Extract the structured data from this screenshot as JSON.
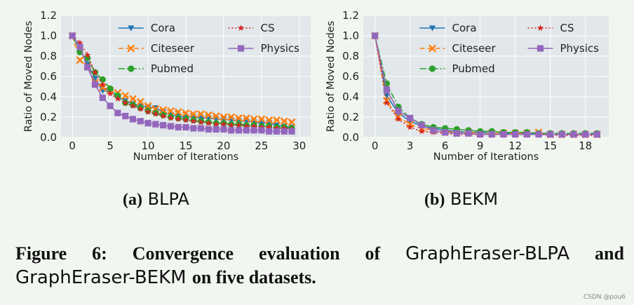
{
  "chart_data": [
    {
      "type": "line",
      "xlabel": "Number of Iterations",
      "ylabel": "Ratio of Moved Nodes",
      "xlim": [
        -1.5,
        31.5
      ],
      "ylim": [
        0.0,
        1.2
      ],
      "xticks": [
        0,
        5,
        10,
        15,
        20,
        25,
        30
      ],
      "yticks": [
        "0.0",
        "0.2",
        "0.4",
        "0.6",
        "0.8",
        "1.0",
        "1.2"
      ],
      "grid": true,
      "legend": "top-right",
      "x": [
        0,
        1,
        2,
        3,
        4,
        5,
        6,
        7,
        8,
        9,
        10,
        11,
        12,
        13,
        14,
        15,
        16,
        17,
        18,
        19,
        20,
        21,
        22,
        23,
        24,
        25,
        26,
        27,
        28,
        29
      ],
      "series": [
        {
          "name": "Cora",
          "values": [
            1.0,
            0.87,
            0.72,
            0.58,
            0.46,
            0.45,
            0.4,
            0.36,
            0.33,
            0.31,
            0.3,
            0.29,
            0.25,
            0.22,
            0.21,
            0.2,
            0.2,
            0.19,
            0.19,
            0.18,
            0.18,
            0.17,
            0.16,
            0.16,
            0.15,
            0.14,
            0.14,
            0.12,
            0.11,
            0.1
          ]
        },
        {
          "name": "Citeseer",
          "values": [
            1.0,
            0.76,
            0.7,
            0.54,
            0.49,
            0.46,
            0.44,
            0.41,
            0.38,
            0.35,
            0.31,
            0.28,
            0.27,
            0.26,
            0.25,
            0.24,
            0.23,
            0.23,
            0.22,
            0.21,
            0.2,
            0.2,
            0.19,
            0.19,
            0.18,
            0.18,
            0.17,
            0.17,
            0.16,
            0.15
          ]
        },
        {
          "name": "Pubmed",
          "values": [
            1.0,
            0.84,
            0.78,
            0.64,
            0.57,
            0.48,
            0.41,
            0.34,
            0.32,
            0.29,
            0.26,
            0.24,
            0.22,
            0.2,
            0.19,
            0.18,
            0.17,
            0.16,
            0.15,
            0.14,
            0.14,
            0.13,
            0.13,
            0.12,
            0.12,
            0.11,
            0.11,
            0.1,
            0.1,
            0.09
          ]
        },
        {
          "name": "CS",
          "values": [
            1.0,
            0.93,
            0.81,
            0.64,
            0.52,
            0.43,
            0.38,
            0.34,
            0.31,
            0.28,
            0.25,
            0.23,
            0.21,
            0.19,
            0.18,
            0.17,
            0.16,
            0.15,
            0.14,
            0.13,
            0.13,
            0.12,
            0.12,
            0.11,
            0.11,
            0.1,
            0.1,
            0.09,
            0.09,
            0.08
          ]
        },
        {
          "name": "Physics",
          "values": [
            1.0,
            0.89,
            0.69,
            0.52,
            0.39,
            0.31,
            0.24,
            0.21,
            0.18,
            0.16,
            0.14,
            0.13,
            0.12,
            0.11,
            0.1,
            0.1,
            0.09,
            0.09,
            0.08,
            0.08,
            0.08,
            0.07,
            0.07,
            0.07,
            0.07,
            0.07,
            0.06,
            0.06,
            0.06,
            0.06
          ]
        }
      ]
    },
    {
      "type": "line",
      "xlabel": "Number of Iterations",
      "ylabel": "Ratio of Moved Nodes",
      "xlim": [
        -1.0,
        20.0
      ],
      "ylim": [
        0.0,
        1.2
      ],
      "xticks": [
        0,
        3,
        6,
        9,
        12,
        15,
        18
      ],
      "yticks": [
        "0.0",
        "0.2",
        "0.4",
        "0.6",
        "0.8",
        "1.0",
        "1.2"
      ],
      "grid": true,
      "legend": "top-right",
      "x": [
        0,
        1,
        2,
        3,
        4,
        5,
        6,
        7,
        8,
        9,
        10,
        11,
        12,
        13,
        14,
        15,
        16,
        17,
        18,
        19
      ],
      "series": [
        {
          "name": "Cora",
          "values": [
            1.0,
            0.41,
            0.24,
            0.16,
            0.11,
            0.09,
            0.07,
            0.06,
            0.05,
            0.05,
            0.04,
            0.04,
            0.04,
            0.04,
            0.03,
            0.03,
            0.03,
            0.03,
            0.03,
            0.03
          ]
        },
        {
          "name": "Citeseer",
          "values": [
            1.0,
            0.36,
            0.2,
            0.13,
            0.09,
            0.07,
            0.06,
            0.05,
            0.05,
            0.04,
            0.04,
            0.04,
            0.04,
            0.04,
            0.05,
            0.03,
            0.03,
            0.03,
            0.03,
            0.03
          ]
        },
        {
          "name": "Pubmed",
          "values": [
            1.0,
            0.53,
            0.3,
            0.19,
            0.13,
            0.1,
            0.09,
            0.08,
            0.07,
            0.06,
            0.06,
            0.05,
            0.05,
            0.05,
            0.04,
            0.04,
            0.04,
            0.04,
            0.04,
            0.04
          ]
        },
        {
          "name": "CS",
          "values": [
            1.0,
            0.34,
            0.18,
            0.1,
            0.06,
            0.05,
            0.04,
            0.03,
            0.03,
            0.03,
            0.03,
            0.03,
            0.03,
            0.03,
            0.03,
            0.02,
            0.02,
            0.02,
            0.02,
            0.02
          ]
        },
        {
          "name": "Physics",
          "values": [
            1.0,
            0.47,
            0.26,
            0.19,
            0.12,
            0.07,
            0.05,
            0.04,
            0.04,
            0.03,
            0.03,
            0.03,
            0.03,
            0.03,
            0.03,
            0.03,
            0.03,
            0.03,
            0.03,
            0.03
          ]
        }
      ]
    }
  ],
  "styles": [
    {
      "color": "#1f77b4",
      "marker": "tri",
      "dash": ""
    },
    {
      "color": "#ff7f0e",
      "marker": "x",
      "dash": "7,4"
    },
    {
      "color": "#2ca02c",
      "marker": "circle",
      "dash": "9,3,2,3"
    },
    {
      "color": "#d62728",
      "marker": "star",
      "dash": "2,3"
    },
    {
      "color": "#9467bd",
      "marker": "square",
      "dash": ""
    }
  ],
  "captions": {
    "a_label": "(a)",
    "a_name": "BLPA",
    "b_label": "(b)",
    "b_name": "BEKM"
  },
  "figure": {
    "w1": "Figure",
    "w2": "6:",
    "w3": "Convergence",
    "w4": "evaluation",
    "w5": "of",
    "w6": "GraphEraser-BLPA",
    "w7": "and",
    "l2a": "GraphEraser-BEKM",
    "l2b": "on five datasets."
  },
  "watermark": "CSDN @pou6"
}
